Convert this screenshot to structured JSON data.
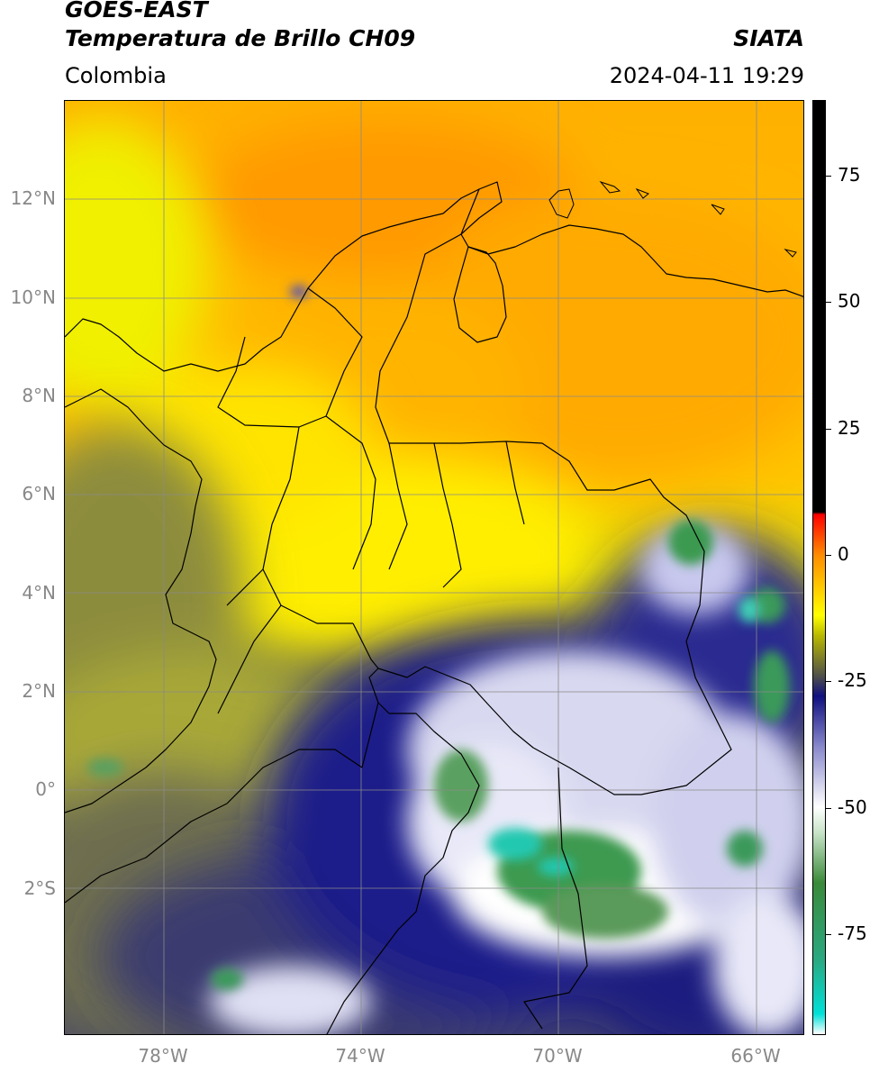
{
  "header": {
    "satellite": "GOES-EAST",
    "product": "Temperatura de Brillo CH09",
    "organization": "SIATA",
    "region": "Colombia",
    "timestamp": "2024-04-11 19:29"
  },
  "map": {
    "lat_range": [
      -5.0,
      14.0
    ],
    "lon_range": [
      -80.0,
      -65.0
    ],
    "lat_ticks": [
      {
        "value": 12,
        "label": "12°N"
      },
      {
        "value": 10,
        "label": "10°N"
      },
      {
        "value": 8,
        "label": "8°N"
      },
      {
        "value": 6,
        "label": "6°N"
      },
      {
        "value": 4,
        "label": "4°N"
      },
      {
        "value": 2,
        "label": "2°N"
      },
      {
        "value": 0,
        "label": "0°"
      },
      {
        "value": -2,
        "label": "2°S"
      }
    ],
    "lon_ticks": [
      {
        "value": -78,
        "label": "78°W"
      },
      {
        "value": -74,
        "label": "74°W"
      },
      {
        "value": -70,
        "label": "70°W"
      },
      {
        "value": -66,
        "label": "66°W"
      }
    ],
    "grid": true
  },
  "colorbar": {
    "range": [
      -95,
      90
    ],
    "ticks": [
      {
        "value": 75,
        "label": "75"
      },
      {
        "value": 50,
        "label": "50"
      },
      {
        "value": 25,
        "label": "25"
      },
      {
        "value": 0,
        "label": "0"
      },
      {
        "value": -25,
        "label": "-25"
      },
      {
        "value": -50,
        "label": "-50"
      },
      {
        "value": -75,
        "label": "-75"
      }
    ],
    "stops": [
      {
        "value": -95,
        "color": "#ffffff"
      },
      {
        "value": -91,
        "color": "#00e0d8"
      },
      {
        "value": -80,
        "color": "#2aa880"
      },
      {
        "value": -65,
        "color": "#3a8a3a"
      },
      {
        "value": -55,
        "color": "#c8e4c8"
      },
      {
        "value": -50,
        "color": "#ffffff"
      },
      {
        "value": -38,
        "color": "#8888cc"
      },
      {
        "value": -28,
        "color": "#101080"
      },
      {
        "value": -24,
        "color": "#50504a"
      },
      {
        "value": -16,
        "color": "#b8b800"
      },
      {
        "value": -12,
        "color": "#ffff00"
      },
      {
        "value": 0,
        "color": "#ff8c00"
      },
      {
        "value": 8,
        "color": "#ff0000"
      },
      {
        "value": 8.5,
        "color": "#000000"
      },
      {
        "value": 90,
        "color": "#000000"
      }
    ]
  }
}
